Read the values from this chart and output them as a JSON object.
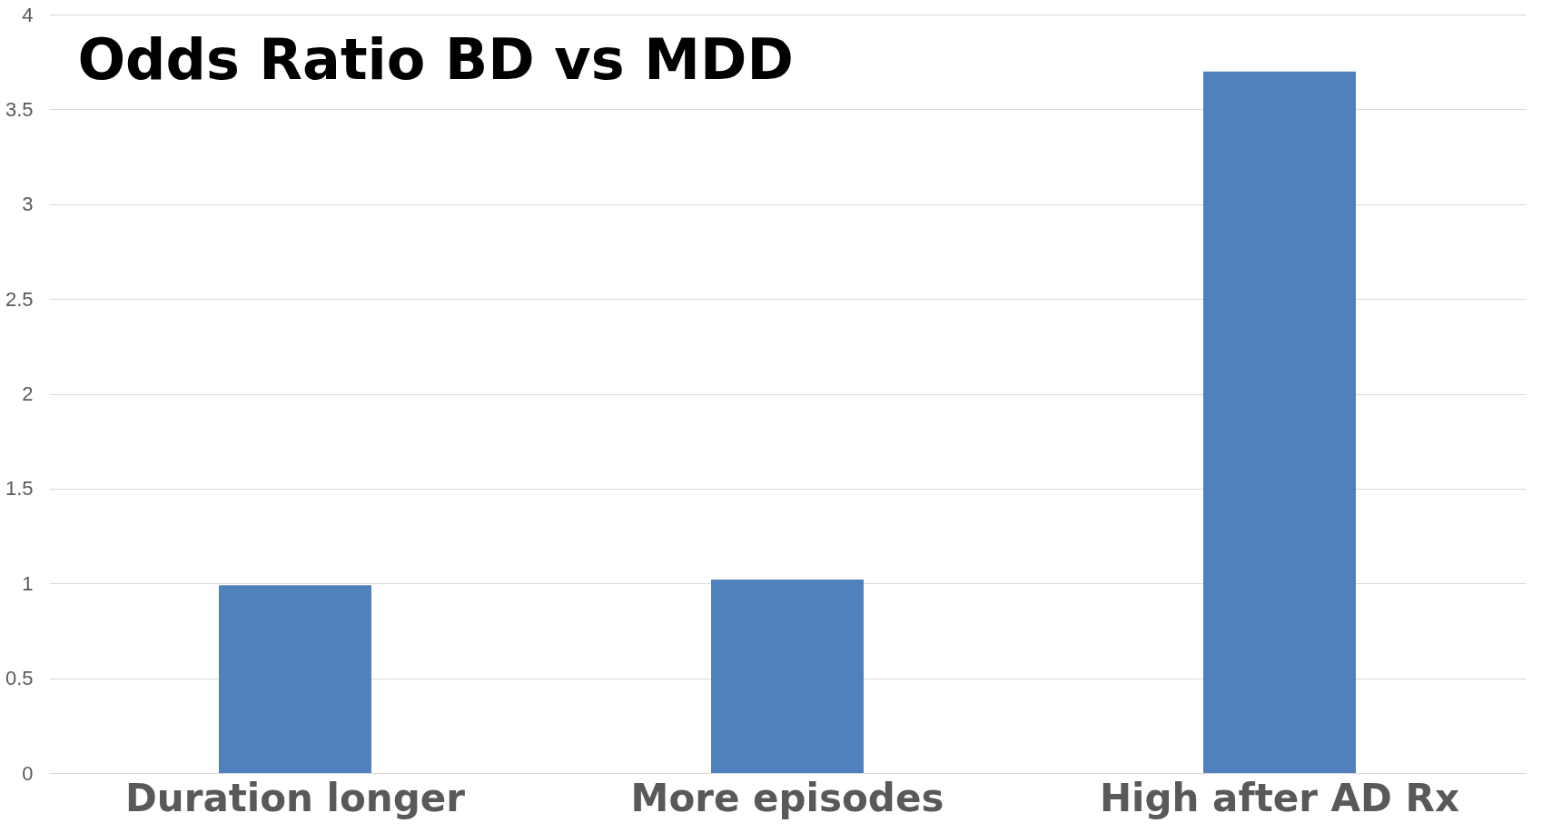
{
  "chart_data": {
    "type": "bar",
    "title": "Odds Ratio BD vs MDD",
    "categories": [
      "Duration longer",
      "More episodes",
      "High after AD Rx"
    ],
    "values": [
      0.99,
      1.02,
      3.7
    ],
    "color": "#4f81bd",
    "ylim": [
      0,
      4
    ],
    "yticks": [
      0,
      0.5,
      1,
      1.5,
      2,
      2.5,
      3,
      3.5,
      4
    ],
    "grid": "y"
  }
}
